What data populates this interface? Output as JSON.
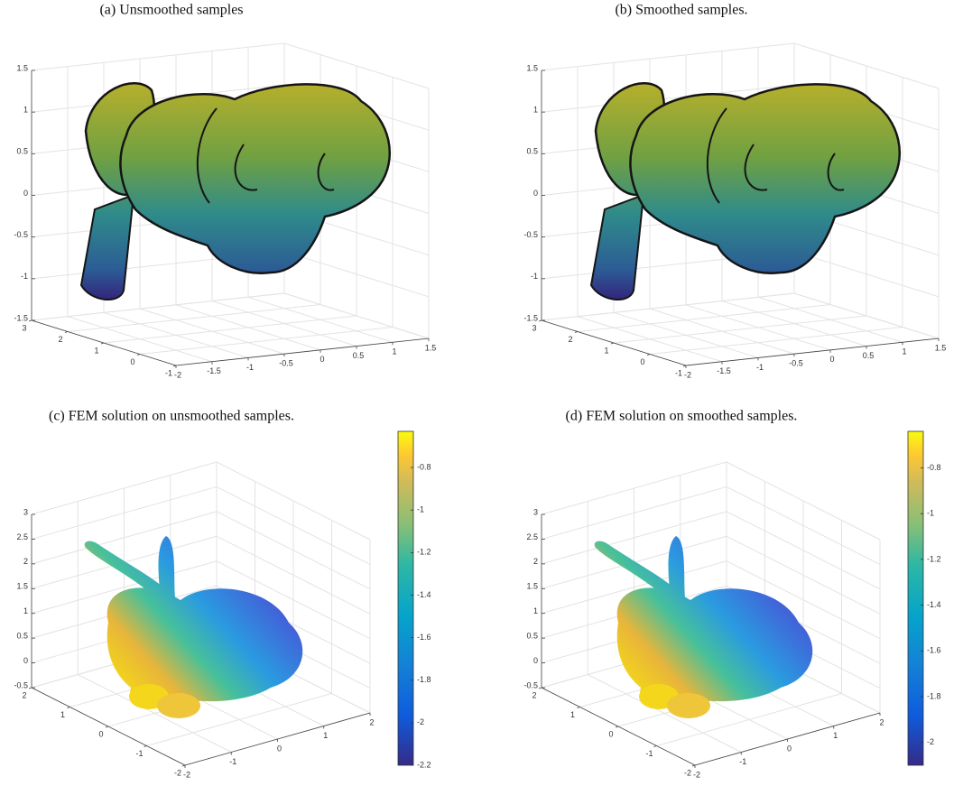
{
  "chart_data": [
    {
      "type": "scatter3d",
      "title": "(a) Unsmoothed samples",
      "xlim": [
        -2,
        1.5
      ],
      "xticks": [
        -2,
        -1.5,
        -1,
        -0.5,
        0,
        0.5,
        1,
        1.5
      ],
      "ylim": [
        -1,
        3
      ],
      "yticks": [
        -1,
        0,
        1,
        2,
        3
      ],
      "zlim": [
        -1.5,
        1.5
      ],
      "zticks": [
        -1.5,
        -1,
        -0.5,
        0,
        0.5,
        1,
        1.5
      ],
      "grid": true
    },
    {
      "type": "scatter3d",
      "title": "(b) Smoothed samples.",
      "xlim": [
        -2,
        1.5
      ],
      "xticks": [
        -2,
        -1.5,
        -1,
        -0.5,
        0,
        0.5,
        1,
        1.5
      ],
      "ylim": [
        -1,
        3
      ],
      "yticks": [
        -1,
        0,
        1,
        2,
        3
      ],
      "zlim": [
        -1.5,
        1.5
      ],
      "zticks": [
        -1.5,
        -1,
        -0.5,
        0,
        0.5,
        1,
        1.5
      ],
      "grid": true
    },
    {
      "type": "scatter3d",
      "title": "(c) FEM solution on unsmoothed samples.",
      "xlim": [
        -2,
        2
      ],
      "xticks": [
        -2,
        -1,
        0,
        1,
        2
      ],
      "ylim": [
        -2,
        2
      ],
      "yticks": [
        -2,
        -1,
        0,
        1,
        2
      ],
      "zlim": [
        -0.5,
        3
      ],
      "zticks": [
        -0.5,
        0,
        0.5,
        1,
        1.5,
        2,
        2.5,
        3
      ],
      "grid": true,
      "clim": [
        -2.2,
        -0.63
      ],
      "cticks": [
        -2.2,
        -2,
        -1.8,
        -1.6,
        -1.4,
        -1.2,
        -1,
        -0.8
      ]
    },
    {
      "type": "scatter3d",
      "title": "(d) FEM solution on smoothed samples.",
      "xlim": [
        -2,
        2
      ],
      "xticks": [
        -2,
        -1,
        0,
        1,
        2
      ],
      "ylim": [
        -2,
        2
      ],
      "yticks": [
        -2,
        -1,
        0,
        1,
        2
      ],
      "zlim": [
        -0.5,
        3
      ],
      "zticks": [
        -0.5,
        0,
        0.5,
        1,
        1.5,
        2,
        2.5,
        3
      ],
      "grid": true,
      "clim": [
        -2.1,
        -0.64
      ],
      "cticks": [
        -2,
        -1.8,
        -1.6,
        -1.4,
        -1.2,
        -1,
        -0.8
      ]
    }
  ]
}
